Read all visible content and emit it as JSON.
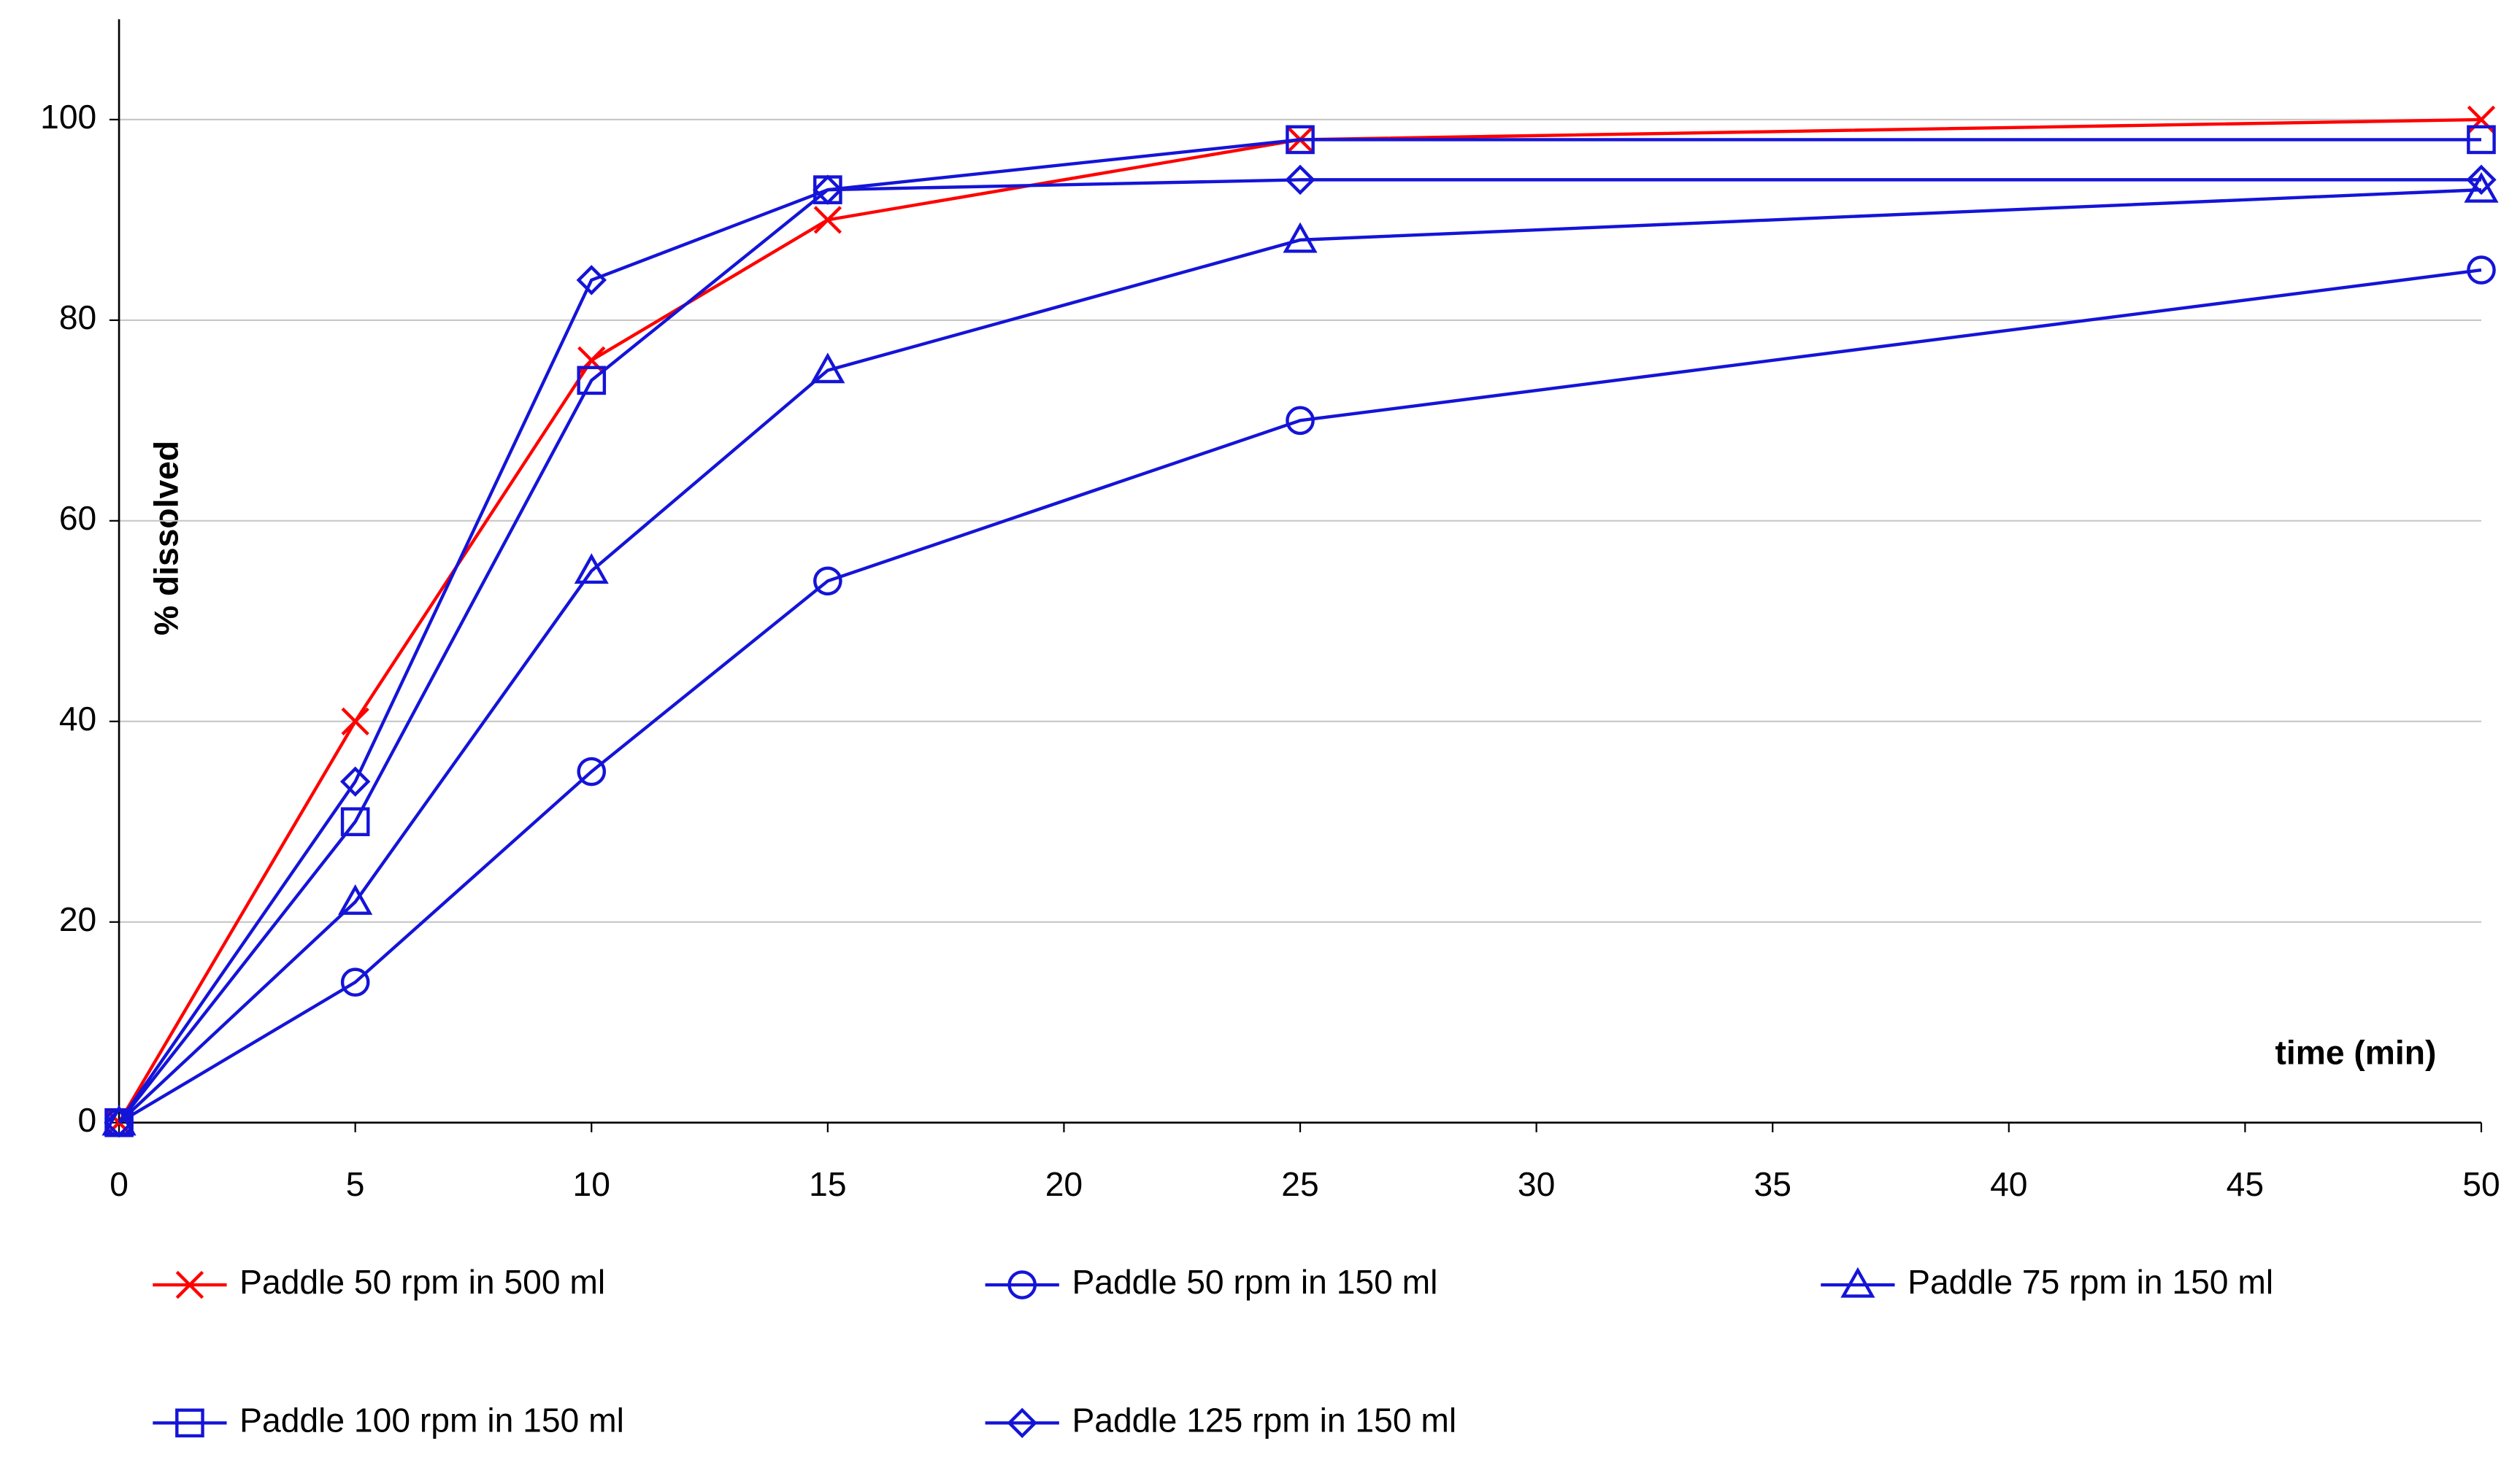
{
  "chart_data": {
    "type": "line",
    "x_label": "time (min)",
    "y_label": "% dissolved",
    "x": [
      0,
      5,
      10,
      15,
      25,
      50
    ],
    "xlim": [
      0,
      50
    ],
    "xticks": [
      0,
      5,
      10,
      15,
      20,
      25,
      30,
      35,
      40,
      45,
      50
    ],
    "ylim": [
      0,
      110
    ],
    "yticks": [
      0,
      20,
      40,
      60,
      80,
      100
    ],
    "grid": true,
    "legend": "bottom",
    "series": [
      {
        "name": "Paddle 50 rpm in 500 ml",
        "color": "#ff0000",
        "marker": "x",
        "values": [
          0,
          40,
          76,
          90,
          98,
          100
        ]
      },
      {
        "name": "Paddle 50 rpm in 150 ml",
        "color": "#1414d8",
        "marker": "circle",
        "values": [
          0,
          14,
          35,
          54,
          70,
          85
        ]
      },
      {
        "name": "Paddle 75 rpm in 150 ml",
        "color": "#1414d8",
        "marker": "triangle",
        "values": [
          0,
          22,
          55,
          75,
          88,
          93
        ]
      },
      {
        "name": "Paddle 100 rpm in 150 ml",
        "color": "#1414d8",
        "marker": "square",
        "values": [
          0,
          30,
          74,
          93,
          98,
          98
        ]
      },
      {
        "name": "Paddle 125 rpm in 150 ml",
        "color": "#1414d8",
        "marker": "diamond",
        "values": [
          0,
          34,
          84,
          93,
          94,
          94
        ]
      }
    ]
  }
}
